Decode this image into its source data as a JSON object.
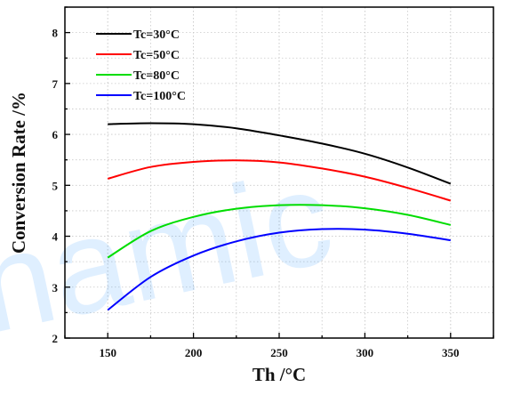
{
  "watermark": "namic",
  "chart_data": {
    "type": "line",
    "xlabel": "Th /°C",
    "ylabel": "Conversion Rate /%",
    "xlim": [
      125,
      375
    ],
    "ylim": [
      2,
      8.5
    ],
    "xticks": [
      150,
      200,
      250,
      300,
      350
    ],
    "yticks": [
      2,
      3,
      4,
      5,
      6,
      7,
      8
    ],
    "grid": true,
    "legend_position": "top-left",
    "series": [
      {
        "name": "Tc=30°C",
        "color": "#000000",
        "x": [
          150,
          175,
          200,
          225,
          250,
          275,
          300,
          325,
          350
        ],
        "y": [
          6.2,
          6.22,
          6.2,
          6.12,
          5.98,
          5.82,
          5.62,
          5.35,
          5.03
        ]
      },
      {
        "name": "Tc=50°C",
        "color": "#ff0000",
        "x": [
          150,
          175,
          200,
          225,
          250,
          275,
          300,
          325,
          350
        ],
        "y": [
          5.13,
          5.36,
          5.46,
          5.49,
          5.45,
          5.33,
          5.17,
          4.95,
          4.7
        ]
      },
      {
        "name": "Tc=80°C",
        "color": "#00dd00",
        "x": [
          150,
          175,
          200,
          225,
          250,
          275,
          300,
          325,
          350
        ],
        "y": [
          3.58,
          4.1,
          4.38,
          4.54,
          4.61,
          4.61,
          4.55,
          4.42,
          4.22
        ]
      },
      {
        "name": "Tc=100°C",
        "color": "#0000ff",
        "x": [
          150,
          175,
          200,
          225,
          250,
          275,
          300,
          325,
          350
        ],
        "y": [
          2.55,
          3.2,
          3.62,
          3.9,
          4.07,
          4.14,
          4.13,
          4.05,
          3.92
        ]
      }
    ]
  }
}
